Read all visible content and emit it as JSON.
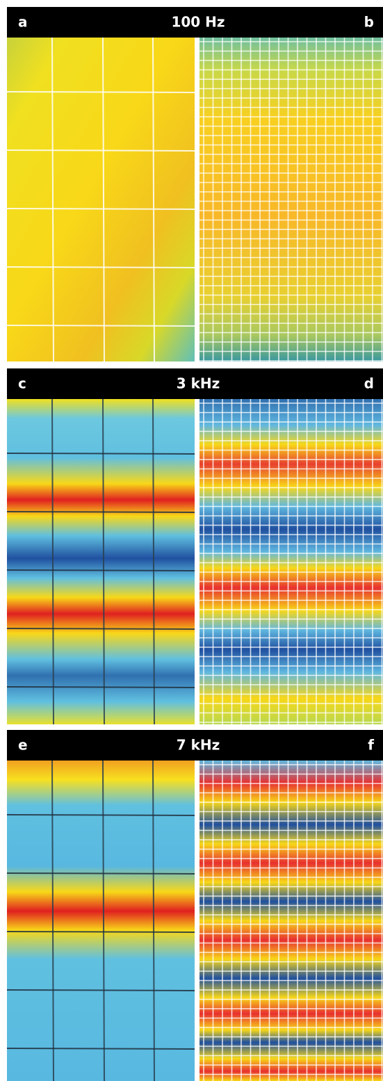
{
  "panels": [
    {
      "left_label": "a",
      "title": "100 Hz",
      "right_label": "b"
    },
    {
      "left_label": "c",
      "title": "3 kHz",
      "right_label": "d"
    },
    {
      "left_label": "e",
      "title": "7 kHz",
      "right_label": "f"
    }
  ]
}
